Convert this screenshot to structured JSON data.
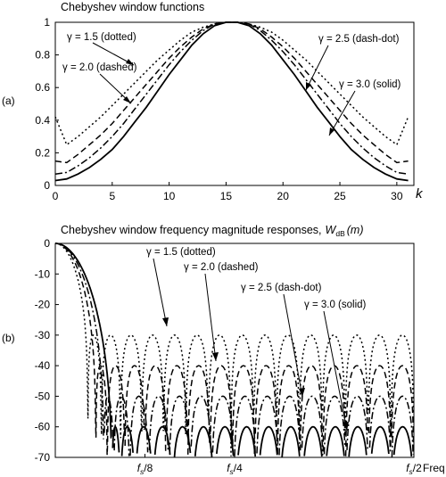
{
  "chart_data": [
    {
      "type": "line",
      "panel_label": "(a)",
      "title": "Chebyshev window functions",
      "xlabel": "k",
      "ylabel": "",
      "xlim": [
        0,
        31.5
      ],
      "ylim": [
        0,
        1
      ],
      "xticks": [
        "0",
        "5",
        "10",
        "15",
        "20",
        "25",
        "30"
      ],
      "xtick_values": [
        0,
        5,
        10,
        15,
        20,
        25,
        30
      ],
      "yticks": [
        "0",
        "0.2",
        "0.4",
        "0.6",
        "0.8",
        "1"
      ],
      "ytick_values": [
        0,
        0.2,
        0.4,
        0.6,
        0.8,
        1.0
      ],
      "grid": false,
      "series": [
        {
          "name": "γ = 1.5 (dotted)",
          "style": "dotted",
          "x": [
            0,
            1,
            2,
            3,
            4,
            5,
            6,
            7,
            8,
            9,
            10,
            11,
            12,
            13,
            14,
            15,
            16,
            17,
            18,
            19,
            20,
            21,
            22,
            23,
            24,
            25,
            26,
            27,
            28,
            29,
            30,
            31
          ],
          "values": [
            0.42,
            0.25,
            0.3,
            0.36,
            0.42,
            0.49,
            0.56,
            0.63,
            0.7,
            0.77,
            0.83,
            0.89,
            0.94,
            0.97,
            0.99,
            1.0,
            1.0,
            0.99,
            0.97,
            0.94,
            0.89,
            0.83,
            0.77,
            0.7,
            0.63,
            0.56,
            0.49,
            0.42,
            0.36,
            0.3,
            0.25,
            0.42
          ]
        },
        {
          "name": "γ = 2.0 (dashed)",
          "style": "dashed",
          "x": [
            0,
            1,
            2,
            3,
            4,
            5,
            6,
            7,
            8,
            9,
            10,
            11,
            12,
            13,
            14,
            15,
            16,
            17,
            18,
            19,
            20,
            21,
            22,
            23,
            24,
            25,
            26,
            27,
            28,
            29,
            30,
            31
          ],
          "values": [
            0.15,
            0.14,
            0.19,
            0.25,
            0.31,
            0.38,
            0.46,
            0.54,
            0.62,
            0.7,
            0.78,
            0.85,
            0.91,
            0.96,
            0.99,
            1.0,
            1.0,
            0.99,
            0.96,
            0.91,
            0.85,
            0.78,
            0.7,
            0.62,
            0.54,
            0.46,
            0.38,
            0.31,
            0.25,
            0.19,
            0.14,
            0.15
          ]
        },
        {
          "name": "γ = 2.5 (dash-dot)",
          "style": "dash-dot",
          "x": [
            0,
            1,
            2,
            3,
            4,
            5,
            6,
            7,
            8,
            9,
            10,
            11,
            12,
            13,
            14,
            15,
            16,
            17,
            18,
            19,
            20,
            21,
            22,
            23,
            24,
            25,
            26,
            27,
            28,
            29,
            30,
            31
          ],
          "values": [
            0.07,
            0.08,
            0.12,
            0.17,
            0.23,
            0.3,
            0.38,
            0.47,
            0.56,
            0.65,
            0.74,
            0.82,
            0.89,
            0.95,
            0.99,
            1.0,
            1.0,
            0.99,
            0.95,
            0.89,
            0.82,
            0.74,
            0.65,
            0.56,
            0.47,
            0.38,
            0.3,
            0.23,
            0.17,
            0.12,
            0.08,
            0.07
          ]
        },
        {
          "name": "γ = 3.0 (solid)",
          "style": "solid",
          "x": [
            0,
            1,
            2,
            3,
            4,
            5,
            6,
            7,
            8,
            9,
            10,
            11,
            12,
            13,
            14,
            15,
            16,
            17,
            18,
            19,
            20,
            21,
            22,
            23,
            24,
            25,
            26,
            27,
            28,
            29,
            30,
            31
          ],
          "values": [
            0.03,
            0.04,
            0.07,
            0.11,
            0.16,
            0.22,
            0.3,
            0.39,
            0.48,
            0.58,
            0.68,
            0.77,
            0.86,
            0.93,
            0.98,
            1.0,
            1.0,
            0.98,
            0.93,
            0.86,
            0.77,
            0.68,
            0.58,
            0.48,
            0.39,
            0.3,
            0.22,
            0.16,
            0.11,
            0.07,
            0.04,
            0.03
          ]
        }
      ]
    },
    {
      "type": "line",
      "panel_label": "(b)",
      "title": "Chebyshev window frequency magnitude responses,",
      "title_math": "W",
      "title_math_sub": "dB",
      "title_math_arg": "(m)",
      "xlabel": "Freq",
      "ylabel": "",
      "xlim": [
        0,
        0.5
      ],
      "ylim": [
        -70,
        0
      ],
      "xticks": [
        "f",
        "f",
        "f"
      ],
      "xtick_subs": [
        "s",
        "s",
        "s"
      ],
      "xtick_suffix": [
        "/8",
        "/4",
        "/2"
      ],
      "xtick_values": [
        0.125,
        0.25,
        0.5
      ],
      "yticks": [
        "0",
        "-10",
        "-20",
        "-30",
        "-40",
        "-50",
        "-60",
        "-70"
      ],
      "ytick_values": [
        0,
        -10,
        -20,
        -30,
        -40,
        -50,
        -60,
        -70
      ],
      "grid": false,
      "series": [
        {
          "name": "γ = 1.5 (dotted)",
          "style": "dotted",
          "sidelobe_level_db": -30
        },
        {
          "name": "γ = 2.0 (dashed)",
          "style": "dashed",
          "sidelobe_level_db": -40
        },
        {
          "name": "γ = 2.5 (dash-dot)",
          "style": "dash-dot",
          "sidelobe_level_db": -50
        },
        {
          "name": "γ = 3.0 (solid)",
          "style": "solid",
          "sidelobe_level_db": -60
        }
      ]
    }
  ]
}
